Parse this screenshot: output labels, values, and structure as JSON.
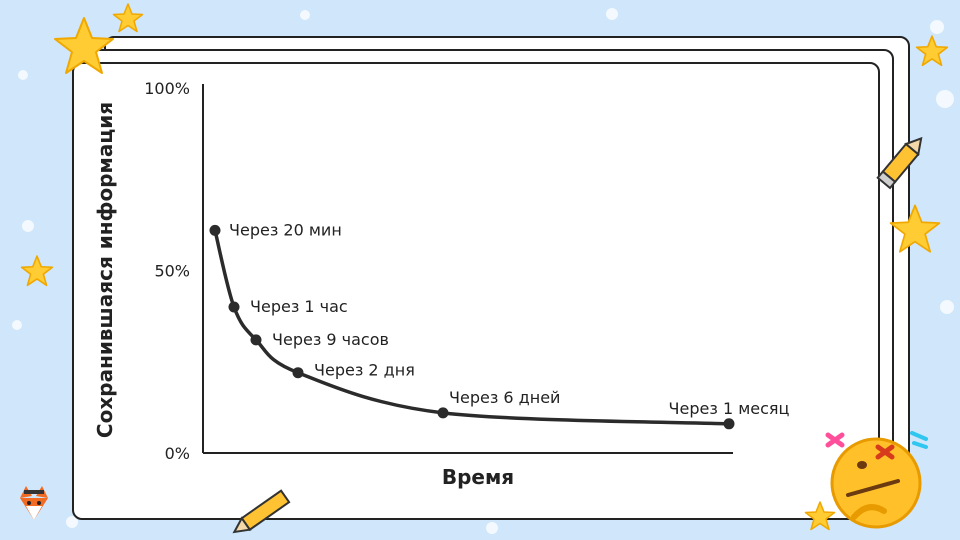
{
  "chart_data": {
    "type": "line",
    "xlabel": "Время",
    "ylabel": "Сохранившаяся информация",
    "ylim": [
      0,
      100
    ],
    "yticks": [
      "0%",
      "50%",
      "100%"
    ],
    "xlim": [
      0,
      31
    ],
    "points": [
      {
        "day": 0.014,
        "value": 61,
        "label": "Через 20 мин"
      },
      {
        "day": 0.042,
        "value": 40,
        "label": "Через 1 час"
      },
      {
        "day": 0.375,
        "value": 31,
        "label": "Через 9 часов"
      },
      {
        "day": 2,
        "value": 22,
        "label": "Через 2 дня"
      },
      {
        "day": 6,
        "value": 11,
        "label": "Через 6 дней"
      },
      {
        "day": 31,
        "value": 8,
        "label": "Через 1 месяц"
      }
    ],
    "colors": {
      "line": "#2b2b2b",
      "axis": "#222222",
      "text": "#222222"
    }
  }
}
